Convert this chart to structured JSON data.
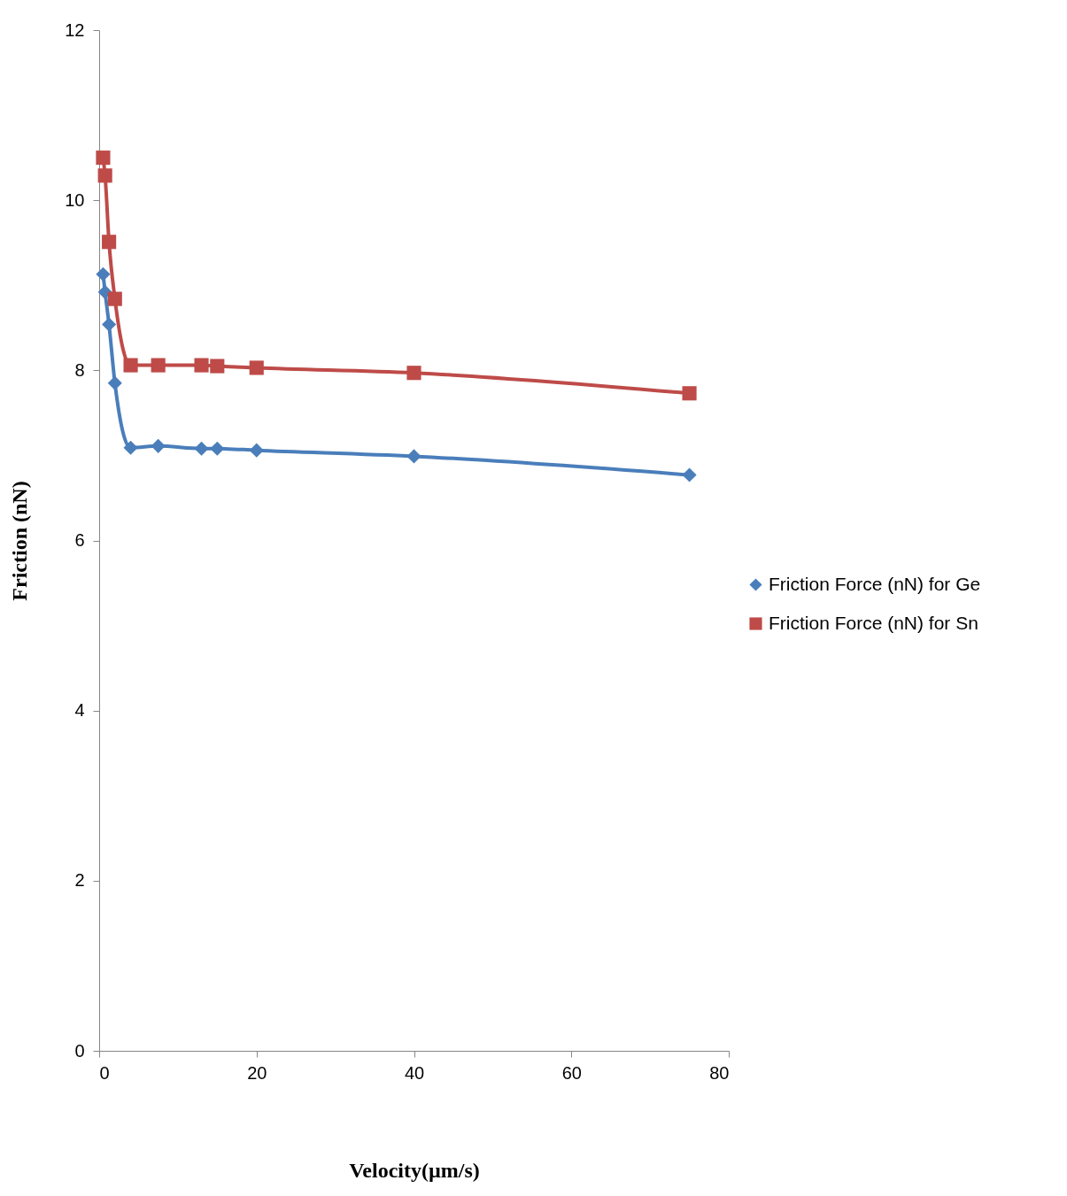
{
  "chart_data": {
    "type": "line",
    "xlabel": "Velocity(µm/s)",
    "ylabel": "Friction (nN)",
    "xlim": [
      0,
      80
    ],
    "ylim": [
      0,
      12
    ],
    "xticks": [
      0,
      20,
      40,
      60,
      80
    ],
    "yticks": [
      0,
      2,
      4,
      6,
      8,
      10,
      12
    ],
    "grid": false,
    "legend": "right",
    "x": [
      0.5,
      0.75,
      1.25,
      2,
      4,
      7.5,
      13,
      15,
      20,
      40,
      75
    ],
    "series": [
      {
        "name": "Friction Force (nN) for Ge",
        "color": "#4a7ebb",
        "marker": "diamond",
        "values": [
          9.13,
          8.92,
          8.54,
          7.85,
          7.09,
          7.11,
          7.08,
          7.08,
          7.06,
          6.99,
          6.77
        ]
      },
      {
        "name": "Friction Force (nN) for Sn",
        "color": "#be4b48",
        "marker": "square",
        "values": [
          10.5,
          10.29,
          9.51,
          8.84,
          8.06,
          8.06,
          8.06,
          8.05,
          8.03,
          7.97,
          7.73
        ]
      }
    ]
  }
}
